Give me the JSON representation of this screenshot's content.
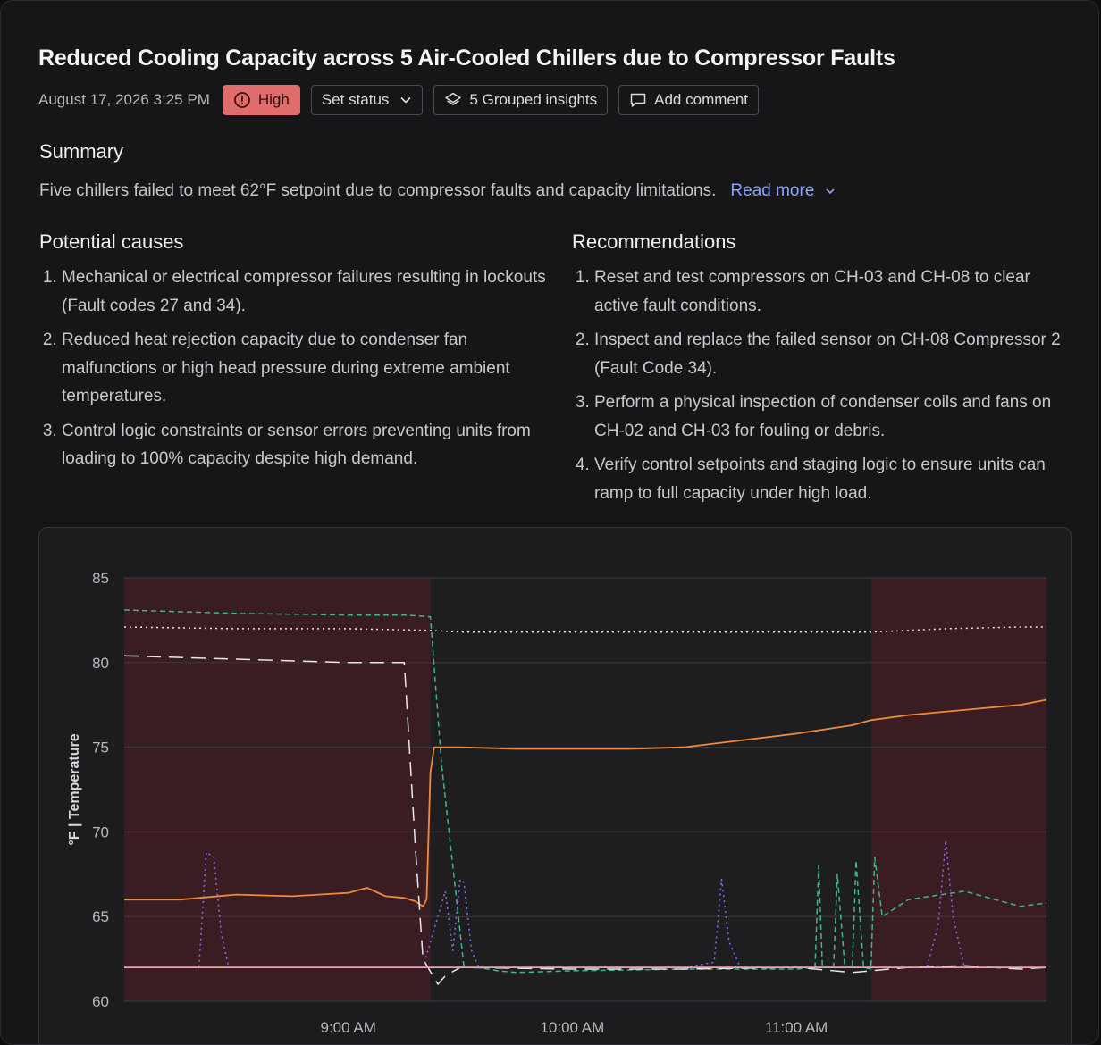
{
  "insight": {
    "title": "Reduced Cooling Capacity across 5 Air-Cooled Chillers due to Compressor Faults",
    "date": "August 17, 2026 3:25 PM",
    "severity": "High",
    "set_status_label": "Set status",
    "grouped_label": "5 Grouped insights",
    "comment_label": "Add comment"
  },
  "summary": {
    "heading": "Summary",
    "text": "Five chillers failed to meet 62°F setpoint due to compressor faults and capacity limitations.",
    "read_more": "Read more"
  },
  "causes": {
    "heading": "Potential causes",
    "items": [
      "Mechanical or electrical compressor failures resulting in lockouts (Fault codes 27 and 34).",
      "Reduced heat rejection capacity due to condenser fan malfunctions or high head pressure during extreme ambient temperatures.",
      "Control logic constraints or sensor errors preventing units from loading to 100% capacity despite high demand."
    ]
  },
  "recommendations": {
    "heading": "Recommendations",
    "items": [
      "Reset and test compressors on CH-03 and CH-08 to clear active fault conditions.",
      "Inspect and replace the failed sensor on CH-08 Compressor 2 (Fault Code 34).",
      "Perform a physical inspection of condenser coils and fans on CH-02 and CH-03 for fouling or debris.",
      "Verify control setpoints and staging logic to ensure units can ramp to full capacity under high load."
    ]
  },
  "colors": {
    "severity_high": "#e06c6c",
    "link": "#8ea3ff",
    "fault_band": "#3a1d22",
    "series_orange": "#f08a3a",
    "series_teal_dashed": "#3fb58f",
    "series_white_dotted": "#e8e8ea",
    "series_white_dashed": "#e8e8ea",
    "series_purple": "#8b6cf0",
    "setpoint": "#f2a0b0"
  },
  "chart_data": {
    "type": "line",
    "title": "",
    "xlabel": "",
    "ylabel": "°F | Temperature",
    "ylim": [
      60,
      85
    ],
    "yticks": [
      60,
      65,
      70,
      75,
      80,
      85
    ],
    "xlim": [
      "8:00",
      "12:07"
    ],
    "xticks": [
      "9:00 AM",
      "10:00 AM",
      "11:00 AM"
    ],
    "legend": "none",
    "grid": true,
    "shaded_fault_periods": [
      [
        "8:00",
        "9:22"
      ],
      [
        "11:20",
        "12:07"
      ]
    ],
    "series": [
      {
        "style": "solid",
        "color": "#f08a3a",
        "x": [
          "8:00",
          "8:15",
          "8:30",
          "8:45",
          "9:00",
          "9:05",
          "9:10",
          "9:15",
          "9:18",
          "9:20",
          "9:21",
          "9:22",
          "9:23",
          "9:30",
          "9:45",
          "10:00",
          "10:15",
          "10:30",
          "10:45",
          "11:00",
          "11:15",
          "11:20",
          "11:30",
          "11:45",
          "12:00",
          "12:07"
        ],
        "y": [
          66.0,
          66.0,
          66.3,
          66.2,
          66.4,
          66.7,
          66.2,
          66.1,
          65.9,
          65.6,
          66.0,
          73.5,
          75.0,
          75.0,
          74.9,
          74.9,
          74.9,
          75.0,
          75.4,
          75.8,
          76.3,
          76.6,
          76.9,
          77.2,
          77.5,
          77.8
        ]
      },
      {
        "style": "dashed",
        "color": "#3fb58f",
        "x": [
          "8:00",
          "8:30",
          "9:00",
          "9:15",
          "9:22",
          "9:25",
          "9:28",
          "9:31",
          "9:35",
          "9:40",
          "9:45",
          "10:00",
          "10:30",
          "11:00",
          "11:05",
          "11:06",
          "11:07",
          "11:10",
          "11:11",
          "11:13",
          "11:15",
          "11:16",
          "11:18",
          "11:20",
          "11:21",
          "11:23",
          "11:30",
          "11:45",
          "12:00",
          "12:07"
        ],
        "y": [
          83.1,
          82.9,
          82.8,
          82.8,
          82.7,
          74.0,
          68.0,
          62.0,
          62.0,
          61.8,
          61.7,
          61.8,
          61.9,
          61.9,
          62.0,
          68.0,
          62.0,
          62.0,
          67.5,
          62.0,
          62.0,
          68.3,
          62.0,
          61.9,
          68.5,
          65.0,
          66.0,
          66.5,
          65.6,
          65.8
        ]
      },
      {
        "style": "dotted",
        "color": "#e8e8ea",
        "x": [
          "8:00",
          "8:30",
          "9:00",
          "9:22",
          "9:30",
          "10:00",
          "10:30",
          "11:00",
          "11:20",
          "11:40",
          "12:00",
          "12:07"
        ],
        "y": [
          82.1,
          82.0,
          82.0,
          81.9,
          81.8,
          81.8,
          81.8,
          81.8,
          81.8,
          82.0,
          82.1,
          82.1
        ]
      },
      {
        "style": "long-dashed",
        "color": "#e8e8ea",
        "x": [
          "8:00",
          "8:15",
          "8:30",
          "8:45",
          "9:00",
          "9:15",
          "9:18",
          "9:20",
          "9:24",
          "9:26",
          "9:30",
          "10:00",
          "10:30",
          "11:00",
          "11:15",
          "11:20",
          "11:30",
          "11:45",
          "12:00",
          "12:07"
        ],
        "y": [
          80.4,
          80.3,
          80.2,
          80.1,
          80.0,
          80.0,
          69.0,
          62.5,
          61.0,
          61.5,
          62.0,
          61.9,
          61.9,
          62.0,
          61.7,
          61.8,
          62.0,
          62.1,
          61.9,
          62.0
        ]
      },
      {
        "style": "dotted",
        "color": "#8b6cf0",
        "x": [
          "8:00",
          "8:20",
          "8:22",
          "8:24",
          "8:26",
          "8:28",
          "8:40",
          "9:20",
          "9:26",
          "9:28",
          "9:30",
          "9:31",
          "9:33",
          "9:35",
          "9:50",
          "10:30",
          "10:38",
          "10:40",
          "10:42",
          "10:45",
          "11:15",
          "11:20",
          "11:35",
          "11:38",
          "11:40",
          "11:42",
          "11:45",
          "12:07"
        ],
        "y": [
          62.0,
          62.0,
          68.8,
          68.5,
          64.0,
          62.0,
          62.0,
          62.0,
          66.5,
          63.0,
          67.2,
          67.0,
          63.0,
          62.0,
          62.0,
          62.0,
          62.3,
          67.2,
          63.5,
          62.0,
          62.0,
          62.0,
          62.0,
          64.5,
          69.5,
          65.0,
          62.0,
          62.0
        ]
      },
      {
        "style": "solid",
        "color": "#f2a0b0",
        "x": [
          "8:00",
          "12:07"
        ],
        "y": [
          62.0,
          62.0
        ]
      }
    ]
  }
}
